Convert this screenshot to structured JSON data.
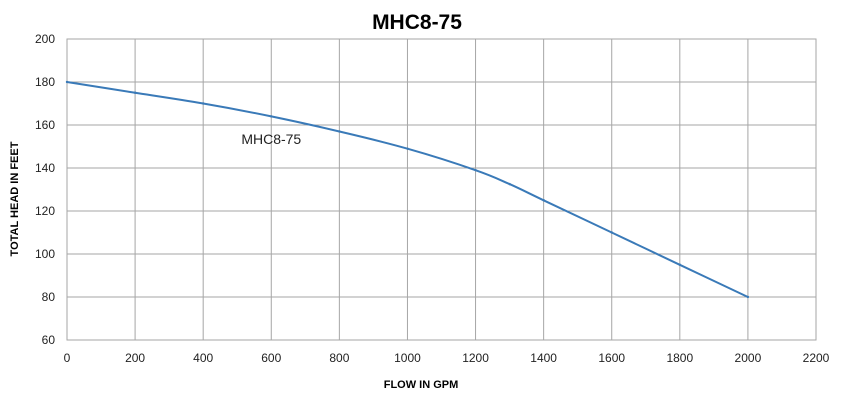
{
  "chart_data": {
    "type": "line",
    "title": "MHC8-75",
    "xlabel": "FLOW IN GPM",
    "ylabel": "TOTAL HEAD IN FEET",
    "xlim": [
      0,
      2200
    ],
    "ylim": [
      60,
      200
    ],
    "x_ticks": [
      "0",
      "200",
      "400",
      "600",
      "800",
      "1000",
      "1200",
      "1400",
      "1600",
      "1800",
      "2000",
      "2200"
    ],
    "y_ticks": [
      "60",
      "80",
      "100",
      "120",
      "140",
      "160",
      "180",
      "200"
    ],
    "grid": true,
    "series": [
      {
        "name": "MHC8-75",
        "color": "#3a7ab8",
        "x": [
          0,
          200,
          400,
          600,
          800,
          1000,
          1200,
          1300,
          1400,
          1600,
          1800,
          2000
        ],
        "y": [
          180,
          175,
          170,
          164,
          157,
          149,
          139,
          132.5,
          125,
          110,
          95,
          80
        ]
      }
    ]
  }
}
